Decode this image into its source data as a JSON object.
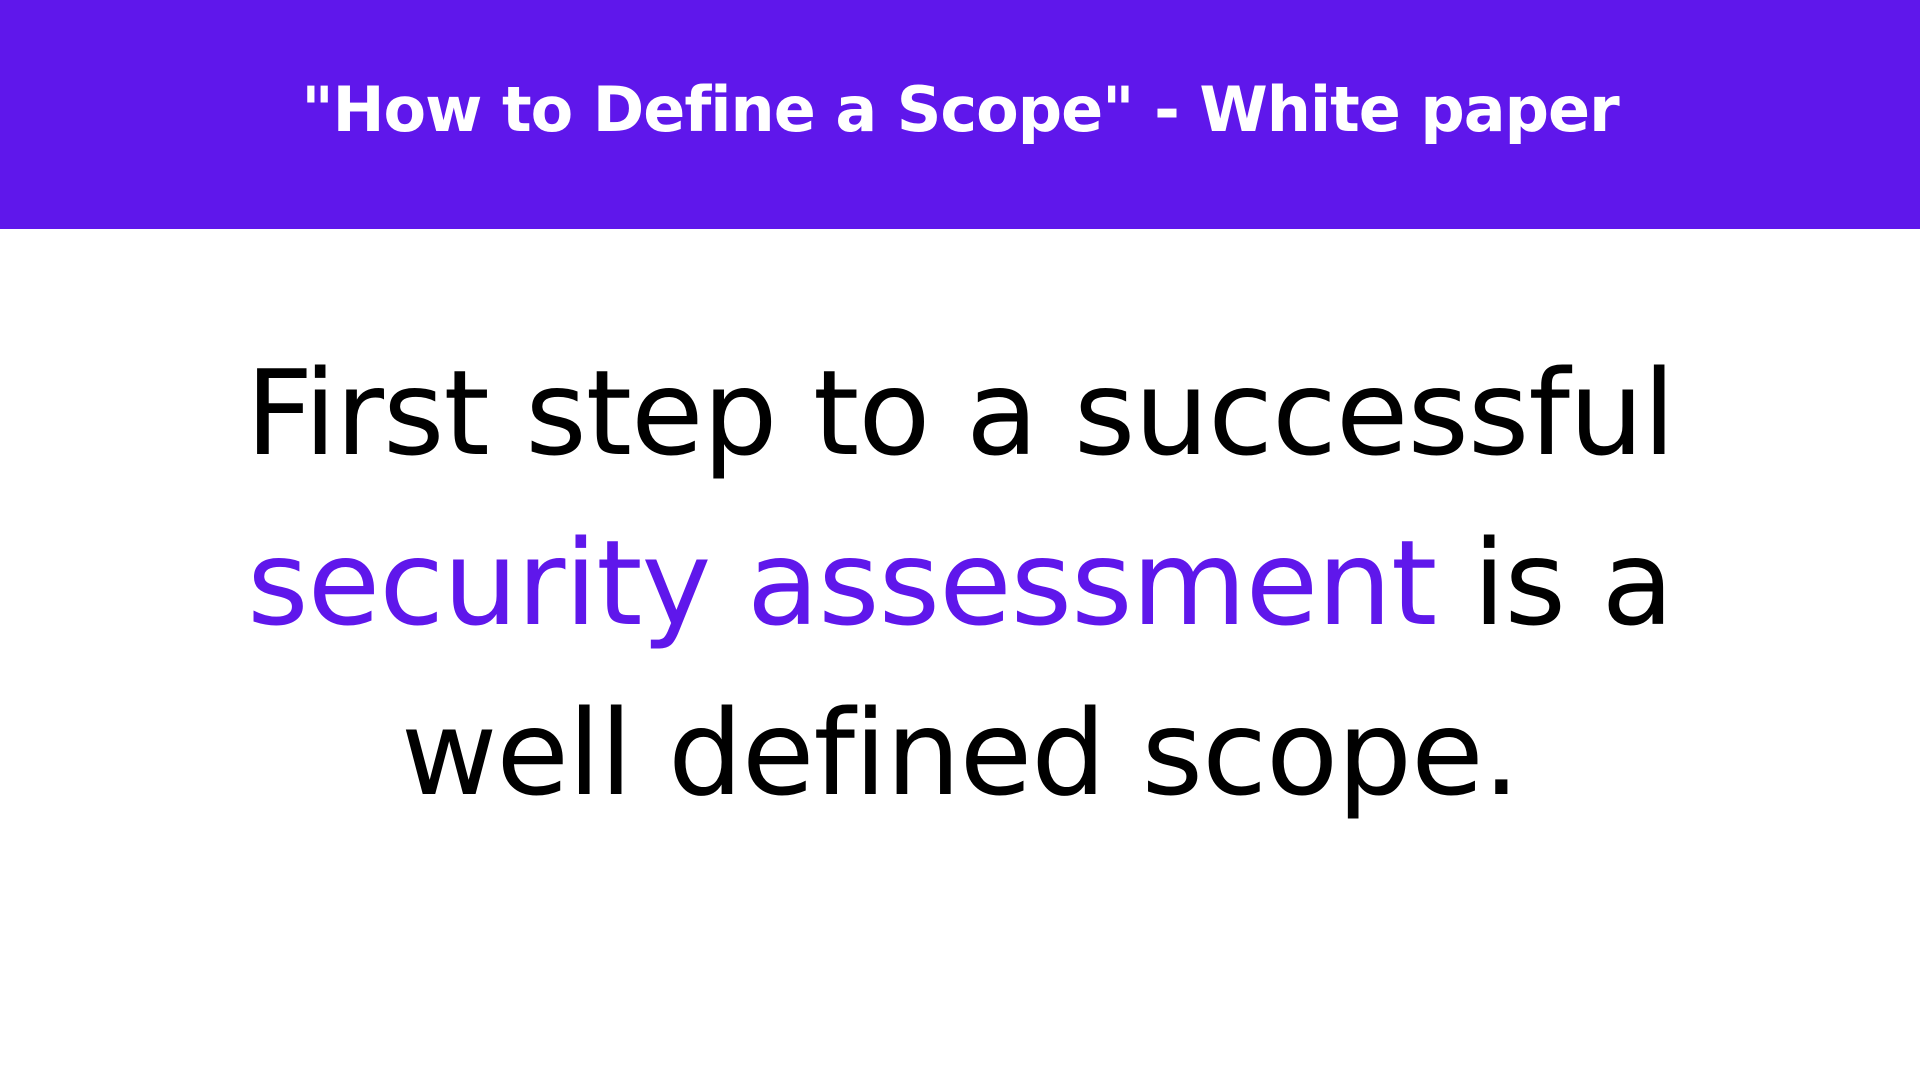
{
  "colors": {
    "accent": "#5F17EB",
    "background": "#FFFFFF",
    "banner_text": "#FFFFFF",
    "body_text": "#000000"
  },
  "banner": {
    "title": "\"How to Define a Scope\" - White paper"
  },
  "statement": {
    "line1": "First step to a successful",
    "line2_highlight": "security assessment",
    "line2_rest": " is a",
    "line3": "well defined scope."
  }
}
